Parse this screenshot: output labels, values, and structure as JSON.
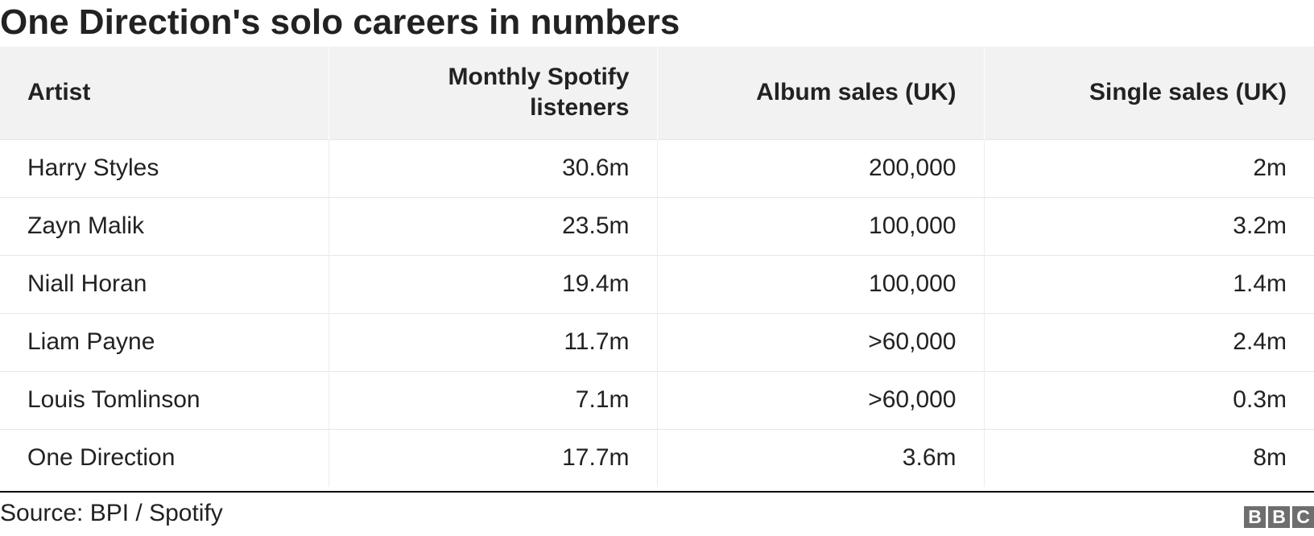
{
  "title": "One Direction's solo careers in numbers",
  "table": {
    "headers": [
      "Artist",
      "Monthly Spotify listeners",
      "Album sales (UK)",
      "Single sales (UK)"
    ],
    "rows": [
      [
        "Harry Styles",
        "30.6m",
        "200,000",
        "2m"
      ],
      [
        "Zayn Malik",
        "23.5m",
        "100,000",
        "3.2m"
      ],
      [
        "Niall Horan",
        "19.4m",
        "100,000",
        "1.4m"
      ],
      [
        "Liam Payne",
        "11.7m",
        ">60,000",
        "2.4m"
      ],
      [
        "Louis Tomlinson",
        "7.1m",
        ">60,000",
        "0.3m"
      ],
      [
        "One Direction",
        "17.7m",
        "3.6m",
        "8m"
      ]
    ]
  },
  "footer": {
    "source": "Source: BPI / Spotify",
    "logo_letters": [
      "B",
      "B",
      "C"
    ]
  },
  "colors": {
    "header_bg": "#f2f2f2",
    "text": "#222222",
    "logo_bg": "#6e6e6e"
  }
}
